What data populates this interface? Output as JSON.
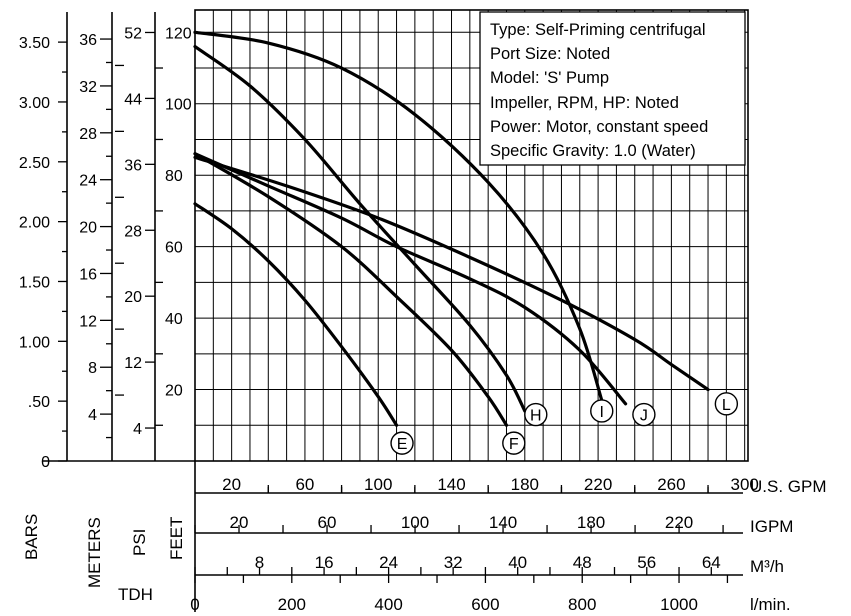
{
  "chart_data": {
    "type": "line",
    "info_box": [
      "Type: Self-Priming centrifugal",
      "Port Size: Noted",
      "Model: 'S' Pump",
      "Impeller, RPM, HP: Noted",
      "Power: Motor, constant speed",
      "Specific Gravity: 1.0 (Water)"
    ],
    "left_axes": [
      {
        "name": "bars",
        "label": "BARS",
        "ticks": [
          "0",
          ".50",
          "1.00",
          "1.50",
          "2.00",
          "2.50",
          "3.00",
          "3.50"
        ],
        "values": [
          0,
          0.5,
          1.0,
          1.5,
          2.0,
          2.5,
          3.0,
          3.5
        ]
      },
      {
        "name": "meters",
        "label": "METERS",
        "ticks": [
          "4",
          "8",
          "12",
          "16",
          "20",
          "24",
          "28",
          "32",
          "36"
        ],
        "values": [
          4,
          8,
          12,
          16,
          20,
          24,
          28,
          32,
          36
        ]
      },
      {
        "name": "psi",
        "label": "PSI",
        "ticks": [
          "4",
          "12",
          "20",
          "28",
          "36",
          "44",
          "52"
        ],
        "values": [
          4,
          12,
          20,
          28,
          36,
          44,
          52
        ]
      },
      {
        "name": "feet",
        "label": "FEET",
        "ticks": [
          "20",
          "40",
          "60",
          "80",
          "100",
          "120"
        ],
        "values": [
          20,
          40,
          60,
          80,
          100,
          120
        ]
      }
    ],
    "tdh_label": "TDH",
    "bottom_axes": [
      {
        "name": "usgpm",
        "label": "U.S. GPM",
        "ticks": [
          "20",
          "60",
          "100",
          "140",
          "180",
          "220",
          "260",
          "300"
        ],
        "values": [
          20,
          60,
          100,
          140,
          180,
          220,
          260,
          300
        ]
      },
      {
        "name": "igpm",
        "label": "IGPM",
        "ticks": [
          "20",
          "60",
          "100",
          "140",
          "180",
          "220"
        ],
        "values": [
          20,
          60,
          100,
          140,
          180,
          220
        ]
      },
      {
        "name": "m3h",
        "label": "M³/h",
        "ticks": [
          "8",
          "16",
          "24",
          "32",
          "40",
          "48",
          "56",
          "64"
        ],
        "values": [
          8,
          16,
          24,
          32,
          40,
          48,
          56,
          64
        ]
      },
      {
        "name": "lmin",
        "label": "l/min.",
        "ticks": [
          "0",
          "200",
          "400",
          "600",
          "800",
          "1000"
        ],
        "values": [
          0,
          200,
          400,
          600,
          800,
          1000
        ]
      }
    ],
    "x_unit": "U.S. GPM",
    "y_unit": "FEET",
    "xlim": [
      0,
      310
    ],
    "ylim": [
      0,
      124
    ],
    "grid": true,
    "series": [
      {
        "name": "E",
        "points": [
          [
            0,
            72
          ],
          [
            20,
            65
          ],
          [
            40,
            56
          ],
          [
            60,
            45
          ],
          [
            80,
            32
          ],
          [
            100,
            18
          ],
          [
            110,
            10
          ]
        ],
        "label_at": [
          113,
          5
        ]
      },
      {
        "name": "F",
        "points": [
          [
            0,
            86
          ],
          [
            40,
            74
          ],
          [
            80,
            60
          ],
          [
            110,
            46
          ],
          [
            140,
            31
          ],
          [
            160,
            18
          ],
          [
            170,
            10
          ]
        ],
        "label_at": [
          174,
          5
        ]
      },
      {
        "name": "H",
        "points": [
          [
            0,
            116
          ],
          [
            30,
            105
          ],
          [
            60,
            90
          ],
          [
            90,
            72
          ],
          [
            120,
            55
          ],
          [
            150,
            38
          ],
          [
            170,
            24
          ],
          [
            180,
            14
          ]
        ],
        "label_at": [
          186,
          13
        ]
      },
      {
        "name": "I",
        "points": [
          [
            0,
            120
          ],
          [
            40,
            117
          ],
          [
            80,
            110
          ],
          [
            120,
            97
          ],
          [
            160,
            78
          ],
          [
            190,
            58
          ],
          [
            210,
            37
          ],
          [
            222,
            17
          ]
        ],
        "label_at": [
          222,
          14
        ]
      },
      {
        "name": "J",
        "points": [
          [
            0,
            86
          ],
          [
            40,
            77
          ],
          [
            80,
            68
          ],
          [
            110,
            60
          ],
          [
            150,
            51
          ],
          [
            180,
            43
          ],
          [
            210,
            31
          ],
          [
            235,
            16
          ]
        ],
        "label_at": [
          245,
          13
        ]
      },
      {
        "name": "L",
        "points": [
          [
            0,
            85
          ],
          [
            50,
            77
          ],
          [
            100,
            68
          ],
          [
            150,
            57
          ],
          [
            200,
            45
          ],
          [
            240,
            34
          ],
          [
            260,
            27
          ],
          [
            280,
            20
          ]
        ],
        "label_at": [
          290,
          16
        ]
      }
    ]
  }
}
